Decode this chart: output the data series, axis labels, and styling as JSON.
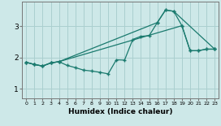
{
  "title": "",
  "xlabel": "Humidex (Indice chaleur)",
  "ylabel": "",
  "background_color": "#cde8e8",
  "grid_color": "#aacfcf",
  "line_color": "#1a7a6e",
  "xlim": [
    -0.5,
    23.5
  ],
  "ylim": [
    0.7,
    3.8
  ],
  "yticks": [
    1,
    2,
    3
  ],
  "xticks": [
    0,
    1,
    2,
    3,
    4,
    5,
    6,
    7,
    8,
    9,
    10,
    11,
    12,
    13,
    14,
    15,
    16,
    17,
    18,
    19,
    20,
    21,
    22,
    23
  ],
  "series1_x": [
    0,
    1,
    2,
    3,
    4,
    5,
    6,
    7,
    8,
    9,
    10,
    11,
    12,
    13,
    14,
    15,
    16,
    17,
    18,
    19,
    20,
    21,
    22,
    23
  ],
  "series1_y": [
    1.85,
    1.78,
    1.73,
    1.83,
    1.87,
    1.75,
    1.68,
    1.6,
    1.57,
    1.53,
    1.48,
    1.93,
    1.92,
    2.58,
    2.68,
    2.7,
    3.12,
    3.52,
    3.48,
    3.02,
    2.22,
    2.22,
    2.27,
    2.27
  ],
  "series2_x": [
    0,
    1,
    2,
    3,
    4,
    16,
    17,
    18,
    23
  ],
  "series2_y": [
    1.85,
    1.78,
    1.73,
    1.83,
    1.87,
    3.12,
    3.52,
    3.48,
    2.27
  ],
  "series3_x": [
    0,
    1,
    2,
    3,
    4,
    19,
    20,
    21,
    22,
    23
  ],
  "series3_y": [
    1.85,
    1.78,
    1.73,
    1.83,
    1.87,
    3.02,
    2.22,
    2.22,
    2.27,
    2.27
  ]
}
